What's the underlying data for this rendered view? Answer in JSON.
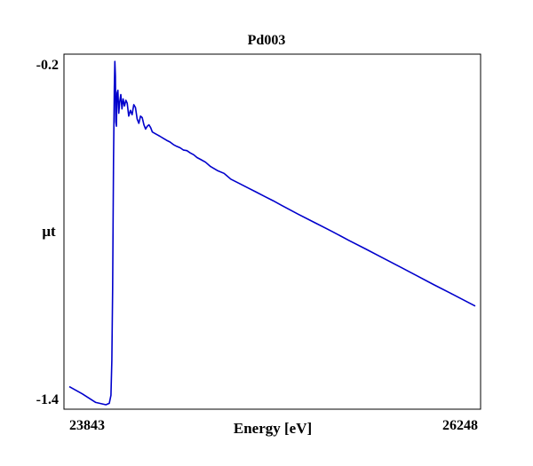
{
  "chart_data": {
    "type": "line",
    "title": "Pd003",
    "xlabel": "Energy [eV]",
    "ylabel": "μt",
    "xlim": [
      23843,
      26248
    ],
    "ylim": [
      -1.4,
      -0.2
    ],
    "x_tick_labels": [
      "23843",
      "26248"
    ],
    "y_tick_labels": [
      "-0.2",
      "-1.4"
    ],
    "grid": false,
    "line_color": "#0000cc",
    "series": [
      {
        "x": [
          23843,
          23920,
          24000,
          24060,
          24080,
          24090,
          24095,
          24100,
          24105,
          24110,
          24113,
          24116,
          24119,
          24122,
          24126,
          24131,
          24136,
          24142,
          24148,
          24155,
          24162,
          24170,
          24178,
          24186,
          24195,
          24205,
          24215,
          24225,
          24235,
          24245,
          24255,
          24265,
          24275,
          24285,
          24295,
          24305,
          24315,
          24325,
          24335,
          24350,
          24365,
          24380,
          24400,
          24420,
          24440,
          24460,
          24480,
          24500,
          24520,
          24540,
          24560,
          24580,
          24600,
          24620,
          24650,
          24680,
          24720,
          24760,
          24800,
          24850,
          24900,
          24950,
          25000,
          25050,
          25100,
          25200,
          25300,
          25400,
          25500,
          25600,
          25700,
          25800,
          25900,
          26000,
          26100,
          26248
        ],
        "y": [
          -1.34,
          -1.365,
          -1.395,
          -1.403,
          -1.398,
          -1.37,
          -1.25,
          -1.0,
          -0.55,
          -0.3,
          -0.21,
          -0.26,
          -0.42,
          -0.435,
          -0.32,
          -0.31,
          -0.39,
          -0.35,
          -0.325,
          -0.375,
          -0.34,
          -0.365,
          -0.345,
          -0.355,
          -0.4,
          -0.38,
          -0.395,
          -0.36,
          -0.37,
          -0.41,
          -0.425,
          -0.4,
          -0.405,
          -0.43,
          -0.445,
          -0.435,
          -0.43,
          -0.44,
          -0.455,
          -0.46,
          -0.465,
          -0.47,
          -0.477,
          -0.484,
          -0.49,
          -0.499,
          -0.505,
          -0.51,
          -0.518,
          -0.52,
          -0.528,
          -0.534,
          -0.544,
          -0.55,
          -0.56,
          -0.575,
          -0.589,
          -0.599,
          -0.619,
          -0.634,
          -0.649,
          -0.664,
          -0.679,
          -0.694,
          -0.71,
          -0.741,
          -0.771,
          -0.801,
          -0.832,
          -0.862,
          -0.893,
          -0.923,
          -0.954,
          -0.985,
          -1.015,
          -1.06
        ]
      }
    ]
  }
}
